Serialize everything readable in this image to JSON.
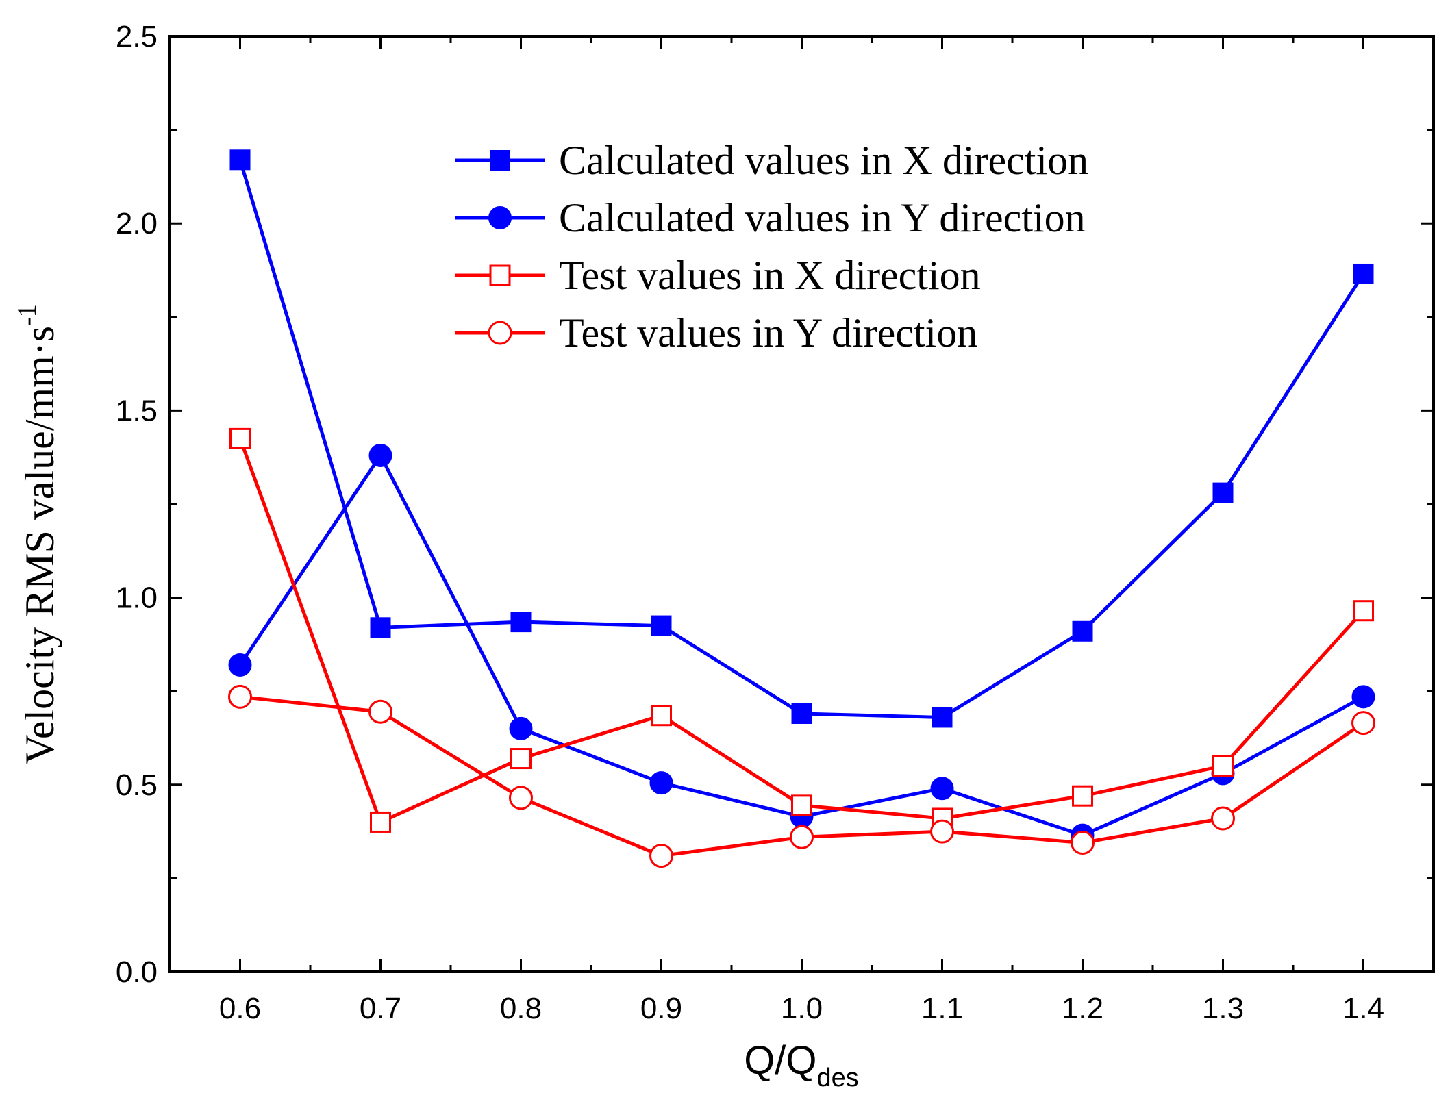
{
  "chart_data": {
    "type": "line",
    "title": "",
    "xlabel": {
      "main": "Q/Q",
      "sub": "des"
    },
    "ylabel": {
      "main": "Velocity RMS value/mm·s",
      "sup": "-1"
    },
    "x": [
      0.6,
      0.7,
      0.8,
      0.9,
      1.0,
      1.1,
      1.2,
      1.3,
      1.4
    ],
    "x_tick_labels": [
      "0.6",
      "0.7",
      "0.8",
      "0.9",
      "1.0",
      "1.1",
      "1.2",
      "1.3",
      "1.4"
    ],
    "y_tick_values": [
      0.0,
      0.5,
      1.0,
      1.5,
      2.0,
      2.5
    ],
    "y_tick_labels": [
      "0.0",
      "0.5",
      "1.0",
      "1.5",
      "2.0",
      "2.5"
    ],
    "xlim": [
      0.55,
      1.45
    ],
    "ylim": [
      0,
      2.5
    ],
    "grid": false,
    "legend_position": "top-center",
    "series": [
      {
        "name": "Calculated values in X direction",
        "color": "#0000ff",
        "marker": "square",
        "filled": true,
        "values": [
          2.17,
          0.92,
          0.935,
          0.925,
          0.69,
          0.68,
          0.91,
          1.28,
          1.865
        ]
      },
      {
        "name": "Calculated values in Y direction",
        "color": "#0000ff",
        "marker": "circle",
        "filled": true,
        "values": [
          0.82,
          1.38,
          0.65,
          0.505,
          0.415,
          0.49,
          0.365,
          0.53,
          0.735
        ]
      },
      {
        "name": "Test values in X direction",
        "color": "#ff0000",
        "marker": "square",
        "filled": false,
        "values": [
          1.425,
          0.4,
          0.57,
          0.685,
          0.445,
          0.41,
          0.47,
          0.55,
          0.965
        ]
      },
      {
        "name": "Test values in Y direction",
        "color": "#ff0000",
        "marker": "circle",
        "filled": false,
        "values": [
          0.735,
          0.695,
          0.465,
          0.31,
          0.36,
          0.375,
          0.345,
          0.41,
          0.665
        ]
      }
    ]
  }
}
